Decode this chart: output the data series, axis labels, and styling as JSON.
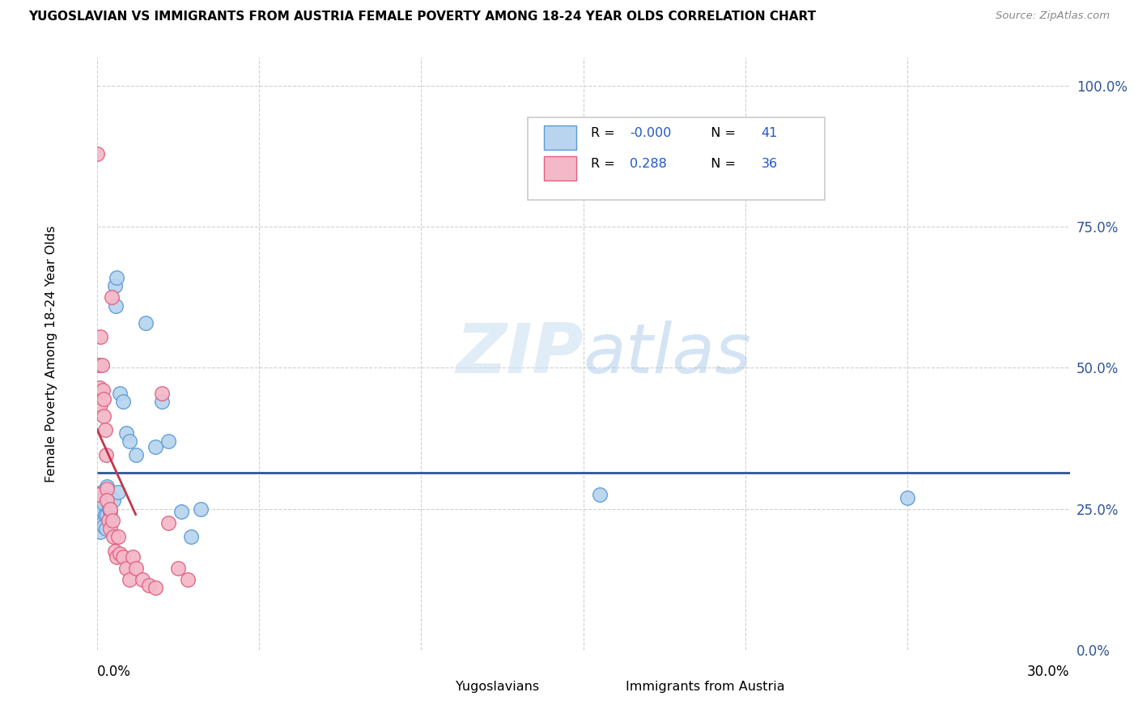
{
  "title": "YUGOSLAVIAN VS IMMIGRANTS FROM AUSTRIA FEMALE POVERTY AMONG 18-24 YEAR OLDS CORRELATION CHART",
  "source": "Source: ZipAtlas.com",
  "ylabel": "Female Poverty Among 18-24 Year Olds",
  "watermark_zip": "ZIP",
  "watermark_atlas": "atlas",
  "xlim": [
    0.0,
    0.3
  ],
  "ylim": [
    0.0,
    1.05
  ],
  "yug_color": "#b8d4ee",
  "yug_edge": "#5b9bd5",
  "aut_color": "#f4b8c8",
  "aut_edge": "#e06080",
  "trend_yug_color": "#2f5597",
  "trend_aut_color": "#c0384b",
  "R_yug": "-0.000",
  "N_yug": "41",
  "R_aut": "0.288",
  "N_aut": "36",
  "yug_x": [
    0.0005,
    0.0005,
    0.0008,
    0.001,
    0.001,
    0.0012,
    0.0015,
    0.0015,
    0.0018,
    0.002,
    0.002,
    0.0022,
    0.0025,
    0.0028,
    0.003,
    0.003,
    0.0032,
    0.0035,
    0.0038,
    0.004,
    0.0042,
    0.0045,
    0.005,
    0.0055,
    0.0058,
    0.006,
    0.0065,
    0.007,
    0.008,
    0.009,
    0.01,
    0.012,
    0.015,
    0.018,
    0.02,
    0.022,
    0.026,
    0.029,
    0.032,
    0.155,
    0.25
  ],
  "yug_y": [
    0.265,
    0.24,
    0.22,
    0.275,
    0.25,
    0.21,
    0.28,
    0.23,
    0.225,
    0.265,
    0.22,
    0.26,
    0.24,
    0.215,
    0.29,
    0.24,
    0.27,
    0.26,
    0.25,
    0.245,
    0.235,
    0.27,
    0.265,
    0.645,
    0.61,
    0.66,
    0.28,
    0.455,
    0.44,
    0.385,
    0.37,
    0.345,
    0.58,
    0.36,
    0.44,
    0.37,
    0.245,
    0.2,
    0.25,
    0.275,
    0.27
  ],
  "aut_x": [
    0.0002,
    0.0003,
    0.0005,
    0.0008,
    0.001,
    0.0012,
    0.0015,
    0.0018,
    0.002,
    0.0022,
    0.0025,
    0.0028,
    0.003,
    0.0032,
    0.0035,
    0.004,
    0.0042,
    0.0045,
    0.0048,
    0.005,
    0.0055,
    0.006,
    0.0065,
    0.007,
    0.008,
    0.009,
    0.01,
    0.011,
    0.012,
    0.014,
    0.016,
    0.018,
    0.02,
    0.022,
    0.025,
    0.028
  ],
  "aut_y": [
    0.88,
    0.275,
    0.505,
    0.465,
    0.435,
    0.555,
    0.505,
    0.46,
    0.445,
    0.415,
    0.39,
    0.345,
    0.285,
    0.265,
    0.23,
    0.25,
    0.215,
    0.625,
    0.23,
    0.2,
    0.175,
    0.165,
    0.2,
    0.17,
    0.165,
    0.145,
    0.125,
    0.165,
    0.145,
    0.125,
    0.115,
    0.11,
    0.455,
    0.225,
    0.145,
    0.125
  ],
  "y_ticks": [
    0.0,
    0.25,
    0.5,
    0.75,
    1.0
  ],
  "y_tick_labels": [
    "0.0%",
    "25.0%",
    "50.0%",
    "75.0%",
    "100.0%"
  ],
  "x_tick_positions": [
    0.0,
    0.05,
    0.1,
    0.15,
    0.2,
    0.25,
    0.3
  ]
}
